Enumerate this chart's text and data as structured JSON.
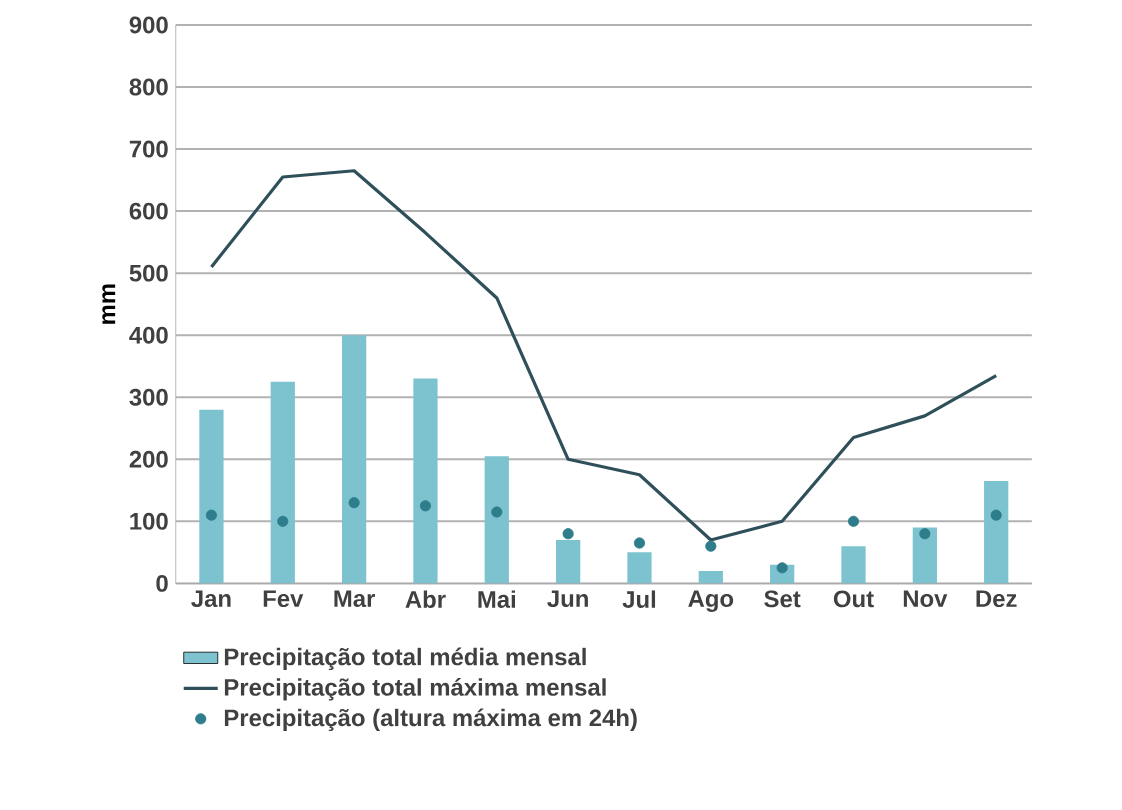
{
  "chart_data": {
    "type": "bar",
    "ylabel": "mm",
    "categories": [
      "Jan",
      "Fev",
      "Mar",
      "Abr",
      "Mai",
      "Jun",
      "Jul",
      "Ago",
      "Set",
      "Out",
      "Nov",
      "Dez"
    ],
    "series": [
      {
        "name": "Precipitação total média mensal",
        "color": "#7cc3cf",
        "values": [
          280,
          325,
          400,
          330,
          205,
          70,
          50,
          20,
          30,
          60,
          90,
          165
        ]
      },
      {
        "name": "Precipitação total máxima mensal",
        "type": "line",
        "marker": "none",
        "line_style": "solid",
        "color": "#2f505a",
        "values": [
          510,
          655,
          665,
          565,
          460,
          200,
          175,
          70,
          100,
          235,
          270,
          335
        ]
      },
      {
        "name": "Precipitação (altura máxima em 24h)",
        "type": "scatter",
        "marker": "circle",
        "color": "#2e7d8c",
        "values": [
          110,
          100,
          130,
          125,
          115,
          80,
          65,
          60,
          25,
          100,
          80,
          110
        ]
      }
    ],
    "ylim": [
      0,
      900
    ],
    "yticks": [
      0,
      100,
      200,
      300,
      400,
      500,
      600,
      700,
      800,
      900
    ],
    "grid": "y",
    "legend": "bottom"
  }
}
